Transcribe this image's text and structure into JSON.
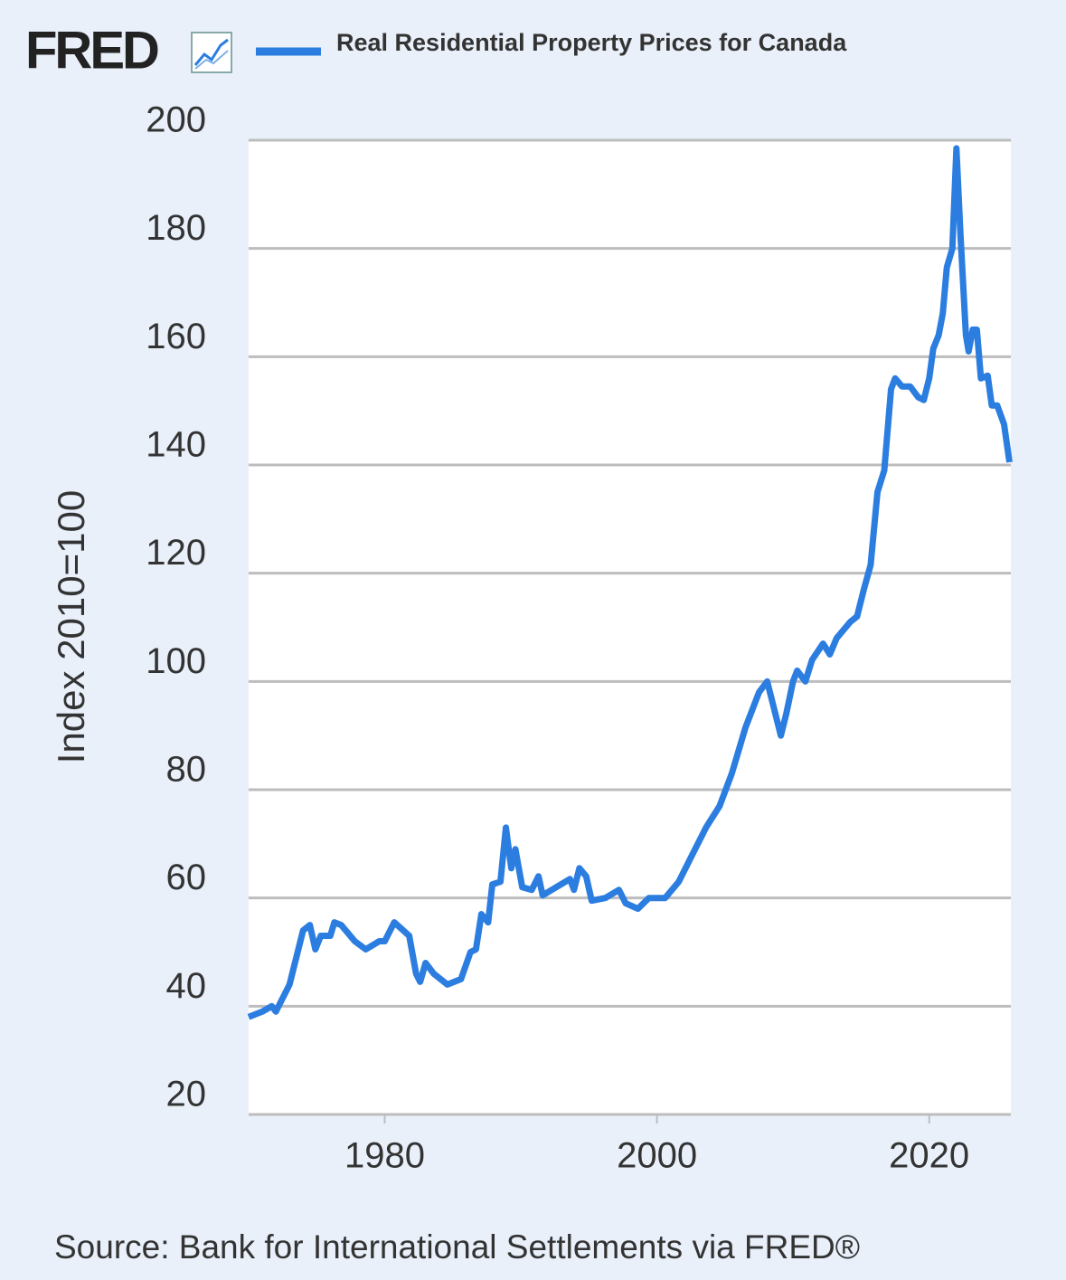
{
  "logo": "FRED",
  "chart_data": {
    "type": "line",
    "ylabel": "Index 2010=100",
    "source": "Source: Bank for International Settlements via FRED®",
    "x": [
      1970.0,
      1971.0,
      1971.7,
      1972.0,
      1973.0,
      1974.0,
      1974.5,
      1974.9,
      1975.3,
      1976.0,
      1976.3,
      1976.8,
      1977.8,
      1978.6,
      1979.6,
      1980.0,
      1980.7,
      1981.8,
      1982.3,
      1982.6,
      1983.0,
      1983.6,
      1984.6,
      1985.6,
      1986.3,
      1986.7,
      1987.1,
      1987.6,
      1987.9,
      1988.5,
      1988.9,
      1989.3,
      1989.6,
      1990.1,
      1990.8,
      1991.3,
      1991.6,
      1992.6,
      1993.6,
      1993.9,
      1994.3,
      1994.8,
      1995.2,
      1996.2,
      1997.2,
      1997.7,
      1998.6,
      1999.4,
      2000.6,
      2001.6,
      2002.6,
      2003.6,
      2004.6,
      2005.5,
      2006.5,
      2007.5,
      2008.1,
      2008.5,
      2009.1,
      2009.5,
      2010.0,
      2010.3,
      2010.9,
      2011.4,
      2012.2,
      2012.7,
      2013.2,
      2014.2,
      2014.7,
      2015.2,
      2015.7,
      2016.2,
      2016.7,
      2017.2,
      2017.5,
      2018.0,
      2018.6,
      2019.2,
      2019.6,
      2020.0,
      2020.3,
      2020.7,
      2021.0,
      2021.3,
      2021.7,
      2022.0,
      2022.3,
      2022.7,
      2022.9,
      2023.2,
      2023.5,
      2023.8,
      2024.3,
      2024.6,
      2025.0,
      2025.5,
      2025.9
    ],
    "series": [
      {
        "name": "Real Residential Property Prices for Canada",
        "color": "#2b7de0",
        "values": [
          38,
          39,
          40,
          39,
          44,
          54,
          55,
          50.5,
          53,
          53,
          55.5,
          55,
          52,
          50.5,
          52,
          52,
          55.5,
          53,
          46,
          44.5,
          48,
          46,
          44,
          45,
          50,
          50.5,
          57,
          55.5,
          62.5,
          63,
          73,
          65.5,
          69,
          62,
          61.5,
          64,
          60.5,
          62,
          63.5,
          61.5,
          65.5,
          64,
          59.5,
          60,
          61.5,
          59,
          58,
          60,
          60,
          63,
          68,
          73,
          77,
          83,
          91.5,
          98,
          100,
          96,
          90,
          94,
          100,
          102,
          100,
          104,
          107,
          105,
          108,
          111,
          112,
          117,
          121.5,
          135,
          139,
          154,
          156,
          154.5,
          154.5,
          152.5,
          152,
          156,
          161.5,
          164,
          168,
          176.5,
          180,
          198.5,
          182.5,
          164,
          161,
          165,
          165,
          156,
          156.5,
          151,
          151,
          147.5,
          140.5
        ]
      }
    ],
    "xlim": [
      1970,
      2026
    ],
    "ylim": [
      20,
      200
    ],
    "xticks": [
      1980,
      2000,
      2020
    ],
    "yticks": [
      20,
      40,
      60,
      80,
      100,
      120,
      140,
      160,
      180,
      200
    ],
    "grid": true
  }
}
